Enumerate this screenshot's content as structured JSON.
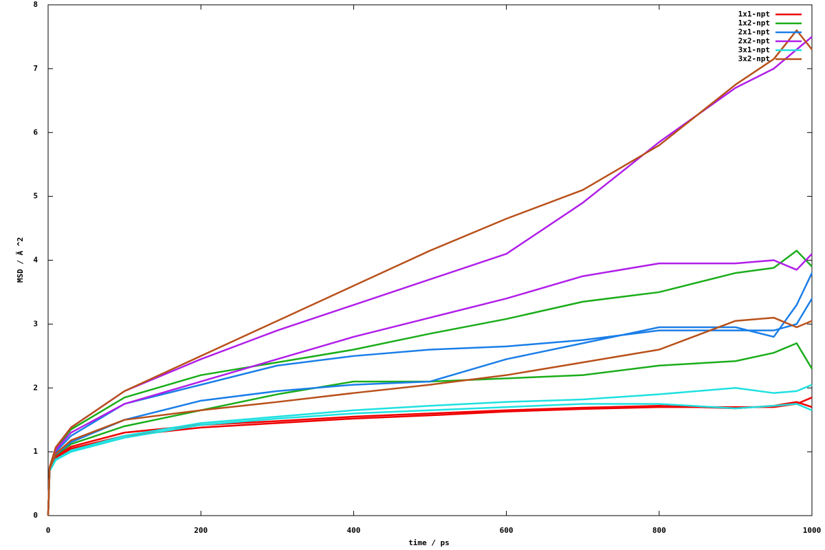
{
  "chart_data": {
    "type": "line",
    "xlabel": "time / ps",
    "ylabel": "MSD / Ã ^2",
    "xlim": [
      0,
      1000
    ],
    "ylim": [
      0,
      8
    ],
    "xticks": [
      0,
      200,
      400,
      600,
      800,
      1000
    ],
    "yticks": [
      0,
      1,
      2,
      3,
      4,
      5,
      6,
      7,
      8
    ],
    "legend": "upper right",
    "x": [
      0,
      2,
      10,
      30,
      100,
      200,
      300,
      400,
      500,
      600,
      700,
      800,
      900,
      950,
      980,
      1000
    ],
    "series": [
      {
        "name": "1x1-npt",
        "color": "#ee0000",
        "curves": [
          [
            0,
            0.7,
            0.9,
            1.05,
            1.25,
            1.38,
            1.45,
            1.52,
            1.57,
            1.63,
            1.67,
            1.7,
            1.7,
            1.7,
            1.75,
            1.85
          ],
          [
            0,
            0.72,
            0.93,
            1.08,
            1.3,
            1.42,
            1.48,
            1.55,
            1.6,
            1.65,
            1.69,
            1.72,
            1.68,
            1.72,
            1.78,
            1.7
          ]
        ]
      },
      {
        "name": "1x2-npt",
        "color": "#1aad1a",
        "curves": [
          [
            0,
            0.75,
            1.05,
            1.35,
            1.85,
            2.2,
            2.4,
            2.6,
            2.85,
            3.08,
            3.35,
            3.5,
            3.8,
            3.88,
            4.15,
            3.9
          ],
          [
            0,
            0.72,
            0.95,
            1.12,
            1.4,
            1.65,
            1.9,
            2.1,
            2.1,
            2.15,
            2.2,
            2.35,
            2.42,
            2.55,
            2.7,
            2.3
          ]
        ]
      },
      {
        "name": "2x1-npt",
        "color": "#1a7ee8",
        "curves": [
          [
            0,
            0.74,
            1.0,
            1.25,
            1.75,
            2.05,
            2.35,
            2.5,
            2.6,
            2.65,
            2.75,
            2.9,
            2.9,
            2.9,
            3.0,
            3.4
          ],
          [
            0,
            0.72,
            0.96,
            1.15,
            1.5,
            1.8,
            1.95,
            2.05,
            2.1,
            2.45,
            2.7,
            2.95,
            2.95,
            2.8,
            3.3,
            3.8
          ]
        ]
      },
      {
        "name": "2x2-npt",
        "color": "#b01ee8",
        "curves": [
          [
            0,
            0.76,
            1.07,
            1.38,
            1.95,
            2.45,
            2.9,
            3.3,
            3.7,
            4.1,
            4.9,
            5.85,
            6.7,
            7.0,
            7.3,
            7.5
          ],
          [
            0,
            0.75,
            1.03,
            1.3,
            1.75,
            2.1,
            2.45,
            2.8,
            3.1,
            3.4,
            3.75,
            3.95,
            3.95,
            4.0,
            3.85,
            4.1
          ]
        ]
      },
      {
        "name": "3x1-npt",
        "color": "#1ee0e0",
        "curves": [
          [
            0,
            0.7,
            0.88,
            1.02,
            1.25,
            1.45,
            1.55,
            1.65,
            1.72,
            1.78,
            1.82,
            1.9,
            2.0,
            1.92,
            1.95,
            2.05
          ],
          [
            0,
            0.7,
            0.87,
            1.0,
            1.22,
            1.42,
            1.52,
            1.6,
            1.65,
            1.7,
            1.75,
            1.75,
            1.68,
            1.72,
            1.75,
            1.65
          ]
        ]
      },
      {
        "name": "3x2-npt",
        "color": "#b8501a",
        "curves": [
          [
            0,
            0.76,
            1.07,
            1.38,
            1.95,
            2.5,
            3.05,
            3.6,
            4.15,
            4.65,
            5.1,
            5.8,
            6.75,
            7.15,
            7.6,
            7.3
          ],
          [
            0,
            0.73,
            0.97,
            1.18,
            1.5,
            1.65,
            1.78,
            1.92,
            2.05,
            2.2,
            2.4,
            2.6,
            3.05,
            3.1,
            2.95,
            3.05
          ]
        ]
      }
    ]
  }
}
